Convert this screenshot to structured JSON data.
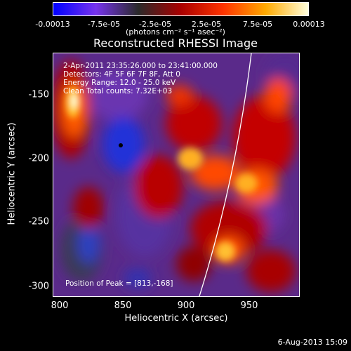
{
  "colorbar": {
    "ticks": [
      "-0.00013",
      "-7.5e-05",
      "-2.5e-05",
      "2.5e-05",
      "7.5e-05",
      "0.00013"
    ],
    "units_label": "(photons cm⁻² s⁻¹ asec⁻²)",
    "colors": [
      "#0000ff",
      "#7733ee",
      "#2a2a2a",
      "#aa0000",
      "#ff3300",
      "#ffaa00",
      "#ffffdd"
    ]
  },
  "title": "Reconstructed RHESSI Image",
  "annotations": {
    "time_range": " 2-Apr-2011 23:35:26.000 to 23:41:00.000",
    "detectors": "Detectors: 4F 5F 6F 7F 8F, Att 0",
    "energy_range": "Energy Range: 12.0 - 25.0 keV",
    "clean_counts": "Clean    Total counts: 7.32E+03",
    "peak_position": "Position of Peak = [813,-168]"
  },
  "axes": {
    "x_label": "Heliocentric X (arcsec)",
    "y_label": "Heliocentric Y (arcsec)",
    "x_ticks": [
      "800",
      "850",
      "900",
      "950"
    ],
    "y_ticks": [
      "-150",
      "-200",
      "-250",
      "-300"
    ]
  },
  "timestamp": "6-Aug-2013 15:09"
}
